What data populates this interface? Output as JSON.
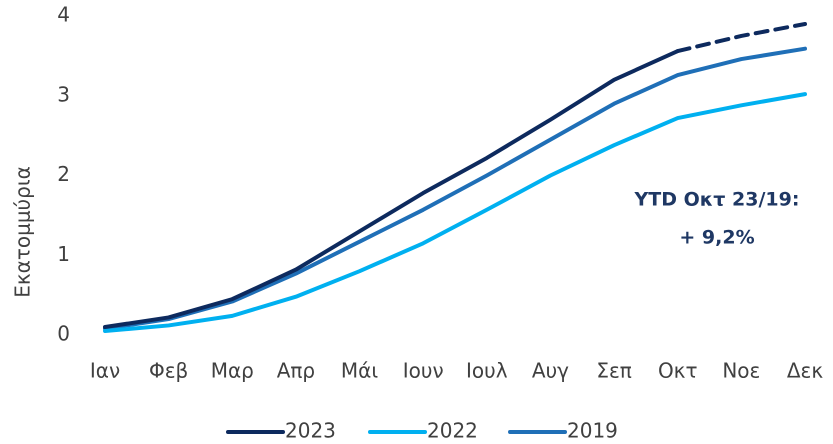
{
  "chart_data": {
    "type": "line",
    "ylabel": "Εκατομμύρια",
    "categories": [
      "Ιαν",
      "Φεβ",
      "Μαρ",
      "Απρ",
      "Μάι",
      "Ιουν",
      "Ιουλ",
      "Αυγ",
      "Σεπ",
      "Οκτ",
      "Νοε",
      "Δεκ"
    ],
    "series": [
      {
        "name": "2023",
        "color": "#0d2a5e",
        "values": [
          0.1,
          0.22,
          0.45,
          0.82,
          1.3,
          1.78,
          2.22,
          2.7,
          3.2,
          3.56,
          3.75,
          3.9
        ],
        "dashed_from_index": 9
      },
      {
        "name": "2022",
        "color": "#00b0f0",
        "values": [
          0.05,
          0.12,
          0.24,
          0.48,
          0.8,
          1.15,
          1.57,
          2.0,
          2.38,
          2.72,
          2.88,
          3.02
        ]
      },
      {
        "name": "2019",
        "color": "#1f6fb7",
        "values": [
          0.08,
          0.2,
          0.42,
          0.77,
          1.17,
          1.57,
          2.0,
          2.45,
          2.9,
          3.26,
          3.46,
          3.59
        ]
      }
    ],
    "ylim": [
      0,
      4
    ],
    "yticks": [
      0,
      1,
      2,
      3,
      4
    ],
    "grid": false,
    "legend": "bottom",
    "annotations": [
      "YTD Οκτ 23/19:",
      "+ 9,2%"
    ],
    "annotation_color": "#1f3864"
  }
}
